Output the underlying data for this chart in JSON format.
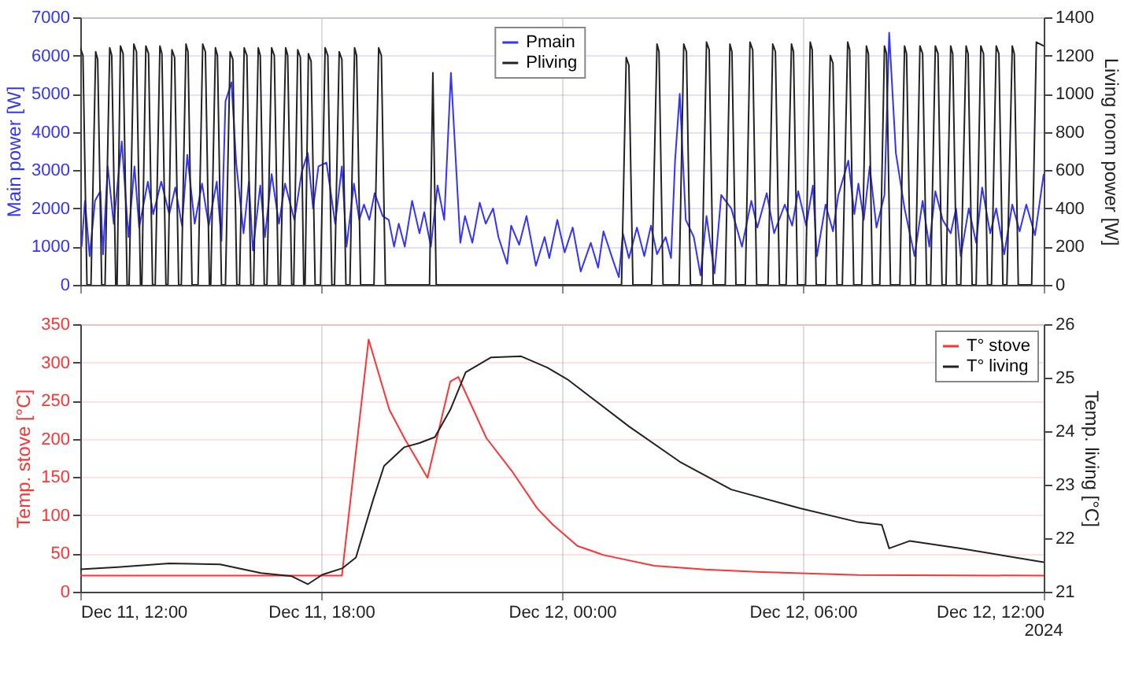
{
  "chart_data": [
    {
      "type": "line",
      "ylabel": "Main power [W]",
      "y2label": "Living room power [W]",
      "xlim": [
        "2024-12-11T12:00",
        "2024-12-12T12:00"
      ],
      "xticks": [
        {
          "value": "2024-12-11T12:00",
          "label": null
        },
        {
          "value": "2024-12-11T18:00",
          "label": null
        },
        {
          "value": "2024-12-12T00:00",
          "label": null
        },
        {
          "value": "2024-12-12T06:00",
          "label": null
        },
        {
          "value": "2024-12-12T12:00",
          "label": null
        }
      ],
      "ylim": [
        0,
        7000
      ],
      "yticks": [
        0,
        1000,
        2000,
        3000,
        4000,
        5000,
        6000,
        7000
      ],
      "y2lim": [
        0,
        1400
      ],
      "y2ticks": [
        0,
        200,
        400,
        600,
        800,
        1000,
        1200,
        1400
      ],
      "grid": true,
      "legend": "top",
      "tick_labels": "y",
      "series": [
        {
          "name": "Pmain",
          "color": "#3333ff",
          "axis": "y",
          "x": [
            "2024-12-11T12:02",
            "2024-12-11T12:07",
            "2024-12-11T12:14",
            "2024-12-11T12:22",
            "2024-12-11T12:30",
            "2024-12-11T12:34",
            "2024-12-11T12:41",
            "2024-12-11T12:50",
            "2024-12-11T13:02",
            "2024-12-11T13:12",
            "2024-12-11T13:21",
            "2024-12-11T13:28",
            "2024-12-11T13:41",
            "2024-12-11T13:49",
            "2024-12-11T14:01",
            "2024-12-11T14:13",
            "2024-12-11T14:22",
            "2024-12-11T14:32",
            "2024-12-11T14:40",
            "2024-12-11T14:51",
            "2024-12-11T15:02",
            "2024-12-11T15:12",
            "2024-12-11T15:24",
            "2024-12-11T15:31",
            "2024-12-11T15:37",
            "2024-12-11T15:46",
            "2024-12-11T15:53",
            "2024-12-11T16:04",
            "2024-12-11T16:12",
            "2024-12-11T16:18",
            "2024-12-11T16:29",
            "2024-12-11T16:36",
            "2024-12-11T16:46",
            "2024-12-11T16:57",
            "2024-12-11T17:06",
            "2024-12-11T17:20",
            "2024-12-11T17:31",
            "2024-12-11T17:40",
            "2024-12-11T17:48",
            "2024-12-11T17:56",
            "2024-12-11T18:08",
            "2024-12-11T18:21",
            "2024-12-11T18:31",
            "2024-12-11T18:38",
            "2024-12-11T18:49",
            "2024-12-11T18:57",
            "2024-12-11T19:04",
            "2024-12-11T19:12",
            "2024-12-11T19:20",
            "2024-12-11T19:32",
            "2024-12-11T19:41",
            "2024-12-11T19:49",
            "2024-12-11T19:56",
            "2024-12-11T20:05",
            "2024-12-11T20:16",
            "2024-12-11T20:27",
            "2024-12-11T20:34",
            "2024-12-11T20:44",
            "2024-12-11T20:54",
            "2024-12-11T21:04",
            "2024-12-11T21:14",
            "2024-12-11T21:28",
            "2024-12-11T21:35",
            "2024-12-11T21:46",
            "2024-12-11T21:57",
            "2024-12-11T22:06",
            "2024-12-11T22:17",
            "2024-12-11T22:25",
            "2024-12-11T22:38",
            "2024-12-11T22:44",
            "2024-12-11T22:56",
            "2024-12-11T23:07",
            "2024-12-11T23:21",
            "2024-12-11T23:34",
            "2024-12-11T23:41",
            "2024-12-11T23:53",
            "2024-12-12T00:04",
            "2024-12-12T00:16",
            "2024-12-12T00:28",
            "2024-12-12T00:43",
            "2024-12-12T00:54",
            "2024-12-12T01:02",
            "2024-12-12T01:17",
            "2024-12-12T01:25",
            "2024-12-12T01:31",
            "2024-12-12T01:40",
            "2024-12-12T01:52",
            "2024-12-12T02:03",
            "2024-12-12T02:13",
            "2024-12-12T02:22",
            "2024-12-12T02:35",
            "2024-12-12T02:43",
            "2024-12-12T02:49",
            "2024-12-12T02:56",
            "2024-12-12T03:05",
            "2024-12-12T03:17",
            "2024-12-12T03:27",
            "2024-12-12T03:36",
            "2024-12-12T03:48",
            "2024-12-12T03:58",
            "2024-12-12T04:13",
            "2024-12-12T04:29",
            "2024-12-12T04:43",
            "2024-12-12T04:52",
            "2024-12-12T05:06",
            "2024-12-12T05:17",
            "2024-12-12T05:33",
            "2024-12-12T05:44",
            "2024-12-12T05:53",
            "2024-12-12T06:05",
            "2024-12-12T06:15",
            "2024-12-12T06:21",
            "2024-12-12T06:34",
            "2024-12-12T06:45",
            "2024-12-12T06:53",
            "2024-12-12T07:08",
            "2024-12-12T07:17",
            "2024-12-12T07:23",
            "2024-12-12T07:31",
            "2024-12-12T07:40",
            "2024-12-12T07:50",
            "2024-12-12T08:02",
            "2024-12-12T08:09",
            "2024-12-12T08:19",
            "2024-12-12T08:32",
            "2024-12-12T08:47",
            "2024-12-12T08:59",
            "2024-12-12T09:09",
            "2024-12-12T09:18",
            "2024-12-12T09:29",
            "2024-12-12T09:41",
            "2024-12-12T09:49",
            "2024-12-12T09:56",
            "2024-12-12T10:08",
            "2024-12-12T10:19",
            "2024-12-12T10:28",
            "2024-12-12T10:40",
            "2024-12-12T10:49",
            "2024-12-12T11:01",
            "2024-12-12T11:13",
            "2024-12-12T11:24",
            "2024-12-12T11:34",
            "2024-12-12T11:47",
            "2024-12-12T12:00"
          ],
          "values": [
            1000,
            2200,
            750,
            2200,
            2450,
            800,
            3100,
            1600,
            3750,
            1250,
            3100,
            1500,
            2700,
            1850,
            2700,
            1850,
            2550,
            1550,
            3400,
            1600,
            2650,
            1550,
            2700,
            1150,
            4800,
            5300,
            3200,
            1350,
            2700,
            900,
            2600,
            1250,
            2900,
            1600,
            2650,
            1700,
            2950,
            3450,
            2000,
            3100,
            3200,
            1600,
            3100,
            1000,
            2650,
            1700,
            2100,
            1700,
            2400,
            1800,
            1700,
            1000,
            1600,
            1000,
            2200,
            1350,
            1900,
            1000,
            2600,
            1700,
            5550,
            1100,
            1800,
            1100,
            2150,
            1600,
            2000,
            1250,
            550,
            1550,
            1050,
            1800,
            500,
            1250,
            700,
            1700,
            850,
            1500,
            350,
            1100,
            450,
            1400,
            600,
            200,
            1350,
            700,
            1500,
            750,
            1550,
            800,
            1250,
            700,
            3250,
            5000,
            1700,
            1250,
            250,
            1800,
            300,
            2350,
            2000,
            1000,
            2200,
            1500,
            2400,
            1350,
            2100,
            1550,
            2450,
            1550,
            2600,
            750,
            2100,
            1400,
            2350,
            3250,
            1850,
            2650,
            1700,
            3100,
            1500,
            2350,
            6600,
            3450,
            2000,
            750,
            2200,
            1000,
            2450,
            1700,
            1350,
            2000,
            750,
            2000,
            1100,
            2550,
            1350,
            2000,
            800,
            2100,
            1400,
            2100,
            1300,
            2900
          ]
        },
        {
          "name": "Pliving",
          "color": "#222222",
          "axis": "y2",
          "x": [
            "2024-12-11T12:00",
            "2024-12-11T12:04",
            "2024-12-11T12:10",
            "2024-12-11T12:16",
            "2024-12-11T12:23",
            "2024-12-11T12:26",
            "2024-12-11T12:32",
            "2024-12-11T12:37",
            "2024-12-11T12:44",
            "2024-12-11T12:47",
            "2024-12-11T12:53",
            "2024-12-11T12:55",
            "2024-12-11T13:00",
            "2024-12-11T13:04",
            "2024-12-11T13:10",
            "2024-12-11T13:13",
            "2024-12-11T13:20",
            "2024-12-11T13:24",
            "2024-12-11T13:30",
            "2024-12-11T13:32",
            "2024-12-11T13:38",
            "2024-12-11T13:42",
            "2024-12-11T13:48",
            "2024-12-11T13:52",
            "2024-12-11T13:59",
            "2024-12-11T14:02",
            "2024-12-11T14:08",
            "2024-12-11T14:11",
            "2024-12-11T14:17",
            "2024-12-11T14:21",
            "2024-12-11T14:27",
            "2024-12-11T14:31",
            "2024-12-11T14:38",
            "2024-12-11T14:41",
            "2024-12-11T14:47",
            "2024-12-11T14:56",
            "2024-12-11T15:03",
            "2024-12-11T15:07",
            "2024-12-11T15:13",
            "2024-12-11T15:15",
            "2024-12-11T15:22",
            "2024-12-11T15:25",
            "2024-12-11T15:31",
            "2024-12-11T15:37",
            "2024-12-11T15:44",
            "2024-12-11T15:48",
            "2024-12-11T15:54",
            "2024-12-11T15:58",
            "2024-12-11T16:05",
            "2024-12-11T16:09",
            "2024-12-11T16:15",
            "2024-12-11T16:19",
            "2024-12-11T16:26",
            "2024-12-11T16:29",
            "2024-12-11T16:35",
            "2024-12-11T16:39",
            "2024-12-11T16:46",
            "2024-12-11T16:50",
            "2024-12-11T16:56",
            "2024-12-11T16:59",
            "2024-12-11T17:07",
            "2024-12-11T17:10",
            "2024-12-11T17:16",
            "2024-12-11T17:19",
            "2024-12-11T17:25",
            "2024-12-11T17:29",
            "2024-12-11T17:34",
            "2024-12-11T17:36",
            "2024-12-11T17:41",
            "2024-12-11T17:45",
            "2024-12-11T17:51",
            "2024-12-11T17:59",
            "2024-12-11T18:06",
            "2024-12-11T18:10",
            "2024-12-11T18:16",
            "2024-12-11T18:20",
            "2024-12-11T18:27",
            "2024-12-11T18:31",
            "2024-12-11T18:37",
            "2024-12-11T18:43",
            "2024-12-11T18:50",
            "2024-12-11T18:53",
            "2024-12-11T18:59",
            "2024-12-11T19:19",
            "2024-12-11T19:26",
            "2024-12-11T19:30",
            "2024-12-11T19:36",
            "2024-12-11T20:42",
            "2024-12-11T20:47",
            "2024-12-11T20:52",
            "2024-12-12T01:29",
            "2024-12-12T01:36",
            "2024-12-12T01:40",
            "2024-12-12T01:46",
            "2024-12-12T02:14",
            "2024-12-12T02:22",
            "2024-12-12T02:25",
            "2024-12-12T02:31",
            "2024-12-12T02:55",
            "2024-12-12T03:02",
            "2024-12-12T03:06",
            "2024-12-12T03:12",
            "2024-12-12T03:29",
            "2024-12-12T03:36",
            "2024-12-12T03:40",
            "2024-12-12T03:46",
            "2024-12-12T04:04",
            "2024-12-12T04:11",
            "2024-12-12T04:14",
            "2024-12-12T04:20",
            "2024-12-12T04:34",
            "2024-12-12T04:41",
            "2024-12-12T04:45",
            "2024-12-12T04:51",
            "2024-12-12T05:08",
            "2024-12-12T05:15",
            "2024-12-12T05:19",
            "2024-12-12T05:25",
            "2024-12-12T05:35",
            "2024-12-12T05:43",
            "2024-12-12T05:46",
            "2024-12-12T05:52",
            "2024-12-12T06:04",
            "2024-12-12T06:11",
            "2024-12-12T06:14",
            "2024-12-12T06:20",
            "2024-12-12T06:34",
            "2024-12-12T06:41",
            "2024-12-12T06:45",
            "2024-12-12T06:51",
            "2024-12-12T06:59",
            "2024-12-12T07:07",
            "2024-12-12T07:10",
            "2024-12-12T07:16",
            "2024-12-12T07:28",
            "2024-12-12T07:35",
            "2024-12-12T07:38",
            "2024-12-12T07:44",
            "2024-12-12T07:55",
            "2024-12-12T08:02",
            "2024-12-12T08:05",
            "2024-12-12T08:11",
            "2024-12-12T08:25",
            "2024-12-12T08:32",
            "2024-12-12T08:35",
            "2024-12-12T08:41",
            "2024-12-12T08:48",
            "2024-12-12T08:55",
            "2024-12-12T08:59",
            "2024-12-12T09:05",
            "2024-12-12T09:11",
            "2024-12-12T09:18",
            "2024-12-12T09:22",
            "2024-12-12T09:28",
            "2024-12-12T09:34",
            "2024-12-12T09:41",
            "2024-12-12T09:44",
            "2024-12-12T09:50",
            "2024-12-12T09:56",
            "2024-12-12T10:04",
            "2024-12-12T10:07",
            "2024-12-12T10:13",
            "2024-12-12T10:19",
            "2024-12-12T10:26",
            "2024-12-12T10:30",
            "2024-12-12T10:36",
            "2024-12-12T10:42",
            "2024-12-12T10:49",
            "2024-12-12T10:53",
            "2024-12-12T10:59",
            "2024-12-12T11:05",
            "2024-12-12T11:13",
            "2024-12-12T11:16",
            "2024-12-12T11:22",
            "2024-12-12T11:42",
            "2024-12-12T11:49",
            "2024-12-12T12:00"
          ],
          "values": [
            1240,
            1200,
            0,
            0,
            1220,
            1180,
            0,
            0,
            1240,
            1200,
            0,
            0,
            1250,
            1210,
            0,
            0,
            1260,
            1220,
            0,
            0,
            1250,
            1210,
            0,
            0,
            1250,
            1210,
            0,
            0,
            1230,
            1190,
            0,
            0,
            1260,
            1220,
            0,
            0,
            1260,
            1220,
            0,
            0,
            1240,
            1200,
            0,
            0,
            1220,
            1180,
            0,
            0,
            1240,
            1200,
            0,
            0,
            1240,
            1200,
            0,
            0,
            1240,
            1200,
            0,
            0,
            1240,
            1200,
            0,
            0,
            1230,
            1190,
            0,
            0,
            1210,
            1170,
            0,
            0,
            1240,
            1200,
            0,
            0,
            1220,
            1180,
            0,
            0,
            1240,
            1200,
            0,
            0,
            1240,
            1200,
            0,
            0,
            1110,
            0,
            0,
            1190,
            1150,
            0,
            0,
            1260,
            1220,
            0,
            0,
            1260,
            1220,
            0,
            0,
            1270,
            1230,
            0,
            0,
            1260,
            1220,
            0,
            0,
            1270,
            1230,
            0,
            0,
            1260,
            1220,
            0,
            0,
            1260,
            1220,
            0,
            0,
            1270,
            1230,
            0,
            0,
            1200,
            1160,
            0,
            0,
            1270,
            1230,
            0,
            0,
            1250,
            1210,
            0,
            0,
            1250,
            1210,
            0,
            0,
            1250,
            1210,
            0,
            0,
            1250,
            1210,
            0,
            0,
            1250,
            1210,
            0,
            0,
            1250,
            1210,
            0,
            0,
            1250,
            1210,
            0,
            0,
            1250,
            1210,
            0,
            0,
            1250,
            1210,
            0,
            0,
            1250,
            1210,
            0,
            0,
            1270,
            1250
          ]
        }
      ]
    },
    {
      "type": "line",
      "ylabel": "Temp. stove [°C]",
      "y2label": "Temp. living [°C]",
      "xlim": [
        "2024-12-11T12:00",
        "2024-12-12T12:00"
      ],
      "xticks": [
        {
          "value": "2024-12-11T12:00",
          "label": "Dec 11, 12:00"
        },
        {
          "value": "2024-12-11T18:00",
          "label": "Dec 11, 18:00"
        },
        {
          "value": "2024-12-12T00:00",
          "label": "Dec 12, 00:00"
        },
        {
          "value": "2024-12-12T06:00",
          "label": "Dec 12, 06:00"
        },
        {
          "value": "2024-12-12T12:00",
          "label": "Dec 12, 12:00"
        }
      ],
      "ylim": [
        0,
        350
      ],
      "yticks": [
        0,
        50,
        100,
        150,
        200,
        250,
        300,
        350
      ],
      "y2lim": [
        21,
        26
      ],
      "y2ticks": [
        21,
        22,
        23,
        24,
        25,
        26
      ],
      "grid": true,
      "legend": "top right",
      "annotations": [
        "2024"
      ],
      "series": [
        {
          "name": "T° stove",
          "color": "#ff3333",
          "axis": "y",
          "x": [
            "2024-12-11T12:00",
            "2024-12-11T18:31",
            "2024-12-11T19:11",
            "2024-12-11T19:42",
            "2024-12-11T20:05",
            "2024-12-11T20:39",
            "2024-12-11T21:13",
            "2024-12-11T21:25",
            "2024-12-11T22:07",
            "2024-12-11T22:45",
            "2024-12-11T23:23",
            "2024-12-11T23:46",
            "2024-12-12T00:23",
            "2024-12-12T01:02",
            "2024-12-12T02:18",
            "2024-12-12T03:34",
            "2024-12-12T04:51",
            "2024-12-12T07:23",
            "2024-12-12T12:00"
          ],
          "values": [
            21,
            21,
            330,
            238,
            200,
            149,
            275,
            281,
            201,
            158,
            109,
            88,
            60,
            48,
            34,
            29,
            26,
            22,
            21
          ]
        },
        {
          "name": "T° living",
          "color": "#222222",
          "axis": "y2",
          "x": [
            "2024-12-11T12:00",
            "2024-12-11T12:56",
            "2024-12-11T14:13",
            "2024-12-11T15:29",
            "2024-12-11T16:30",
            "2024-12-11T17:16",
            "2024-12-11T17:40",
            "2024-12-11T18:02",
            "2024-12-11T18:32",
            "2024-12-11T18:52",
            "2024-12-11T19:18",
            "2024-12-11T19:34",
            "2024-12-11T20:04",
            "2024-12-11T20:27",
            "2024-12-11T20:50",
            "2024-12-11T21:13",
            "2024-12-11T21:36",
            "2024-12-11T22:14",
            "2024-12-11T22:59",
            "2024-12-11T23:38",
            "2024-12-12T00:08",
            "2024-12-12T01:40",
            "2024-12-12T02:56",
            "2024-12-12T04:13",
            "2024-12-12T05:56",
            "2024-12-12T07:23",
            "2024-12-12T07:58",
            "2024-12-12T08:09",
            "2024-12-12T08:40",
            "2024-12-12T09:56",
            "2024-12-12T12:00"
          ],
          "values": [
            21.42,
            21.46,
            21.53,
            21.51,
            21.35,
            21.29,
            21.14,
            21.32,
            21.44,
            21.64,
            22.73,
            23.35,
            23.7,
            23.78,
            23.89,
            24.4,
            25.1,
            25.38,
            25.4,
            25.19,
            24.97,
            24.09,
            23.43,
            22.91,
            22.56,
            22.3,
            22.25,
            21.81,
            21.95,
            21.81,
            21.55
          ]
        }
      ]
    }
  ]
}
